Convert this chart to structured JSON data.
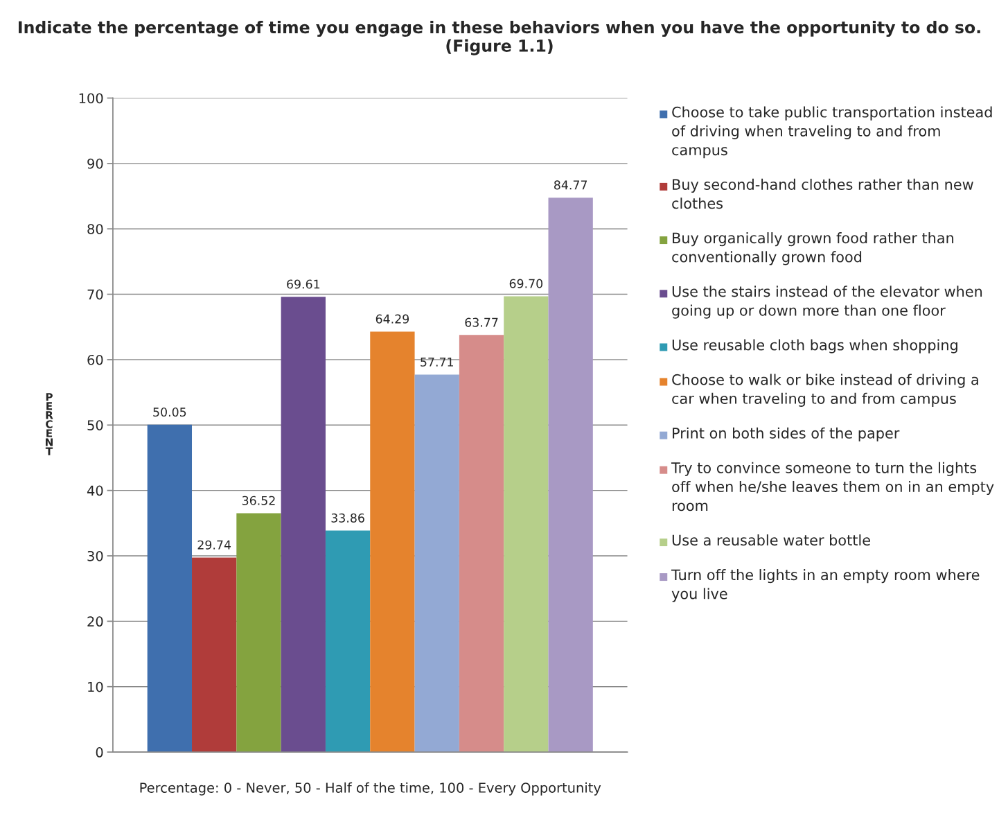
{
  "chart_data": {
    "type": "bar",
    "title": "Indicate the percentage of time you engage in these behaviors when you have the opportunity to do so. (Figure 1.1)",
    "xlabel": "Percentage: 0 - Never, 50 - Half of the time, 100 - Every Opportunity",
    "ylabel": "PERCENT",
    "categories": [
      null
    ],
    "series": [
      {
        "name": "Choose to take public transportation instead of driving when traveling to and from campus",
        "color": "#3f6fae",
        "values": [
          50.05
        ],
        "value_labels": [
          "50.05"
        ]
      },
      {
        "name": "Buy second-hand clothes rather than new clothes",
        "color": "#b03c3a",
        "values": [
          29.74
        ],
        "value_labels": [
          "29.74"
        ]
      },
      {
        "name": "Buy organically grown food rather than conventionally grown food",
        "color": "#84a33f",
        "values": [
          36.52
        ],
        "value_labels": [
          "36.52"
        ]
      },
      {
        "name": "Use the stairs instead of the elevator when going up or down more than one floor",
        "color": "#6a4d8f",
        "values": [
          69.61
        ],
        "value_labels": [
          "69.61"
        ]
      },
      {
        "name": "Use reusable cloth bags when shopping",
        "color": "#2f9bb3",
        "values": [
          33.86
        ],
        "value_labels": [
          "33.86"
        ]
      },
      {
        "name": "Choose to walk or bike instead of driving a car when traveling to and from campus",
        "color": "#e5832d",
        "values": [
          64.29
        ],
        "value_labels": [
          "64.29"
        ]
      },
      {
        "name": "Print on both sides of the paper",
        "color": "#93a9d4",
        "values": [
          57.71
        ],
        "value_labels": [
          "57.71"
        ]
      },
      {
        "name": "Try to convince someone to turn the lights off when he/she leaves them on in an empty room",
        "color": "#d68c8a",
        "values": [
          63.77
        ],
        "value_labels": [
          "63.77"
        ]
      },
      {
        "name": "Use a reusable water bottle",
        "color": "#b6cf8a",
        "values": [
          69.7
        ],
        "value_labels": [
          "69.70"
        ]
      },
      {
        "name": "Turn off the lights in an empty room where you live",
        "color": "#a899c4",
        "values": [
          84.77
        ],
        "value_labels": [
          "84.77"
        ]
      }
    ],
    "ylim": [
      0,
      100
    ],
    "yticks": [
      0,
      10,
      20,
      30,
      40,
      50,
      60,
      70,
      80,
      90,
      100
    ],
    "grid": "y",
    "legend": "right"
  }
}
